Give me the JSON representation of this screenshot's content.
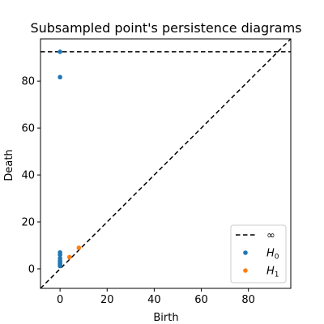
{
  "chart_data": {
    "type": "scatter",
    "title": "Subsampled point's persistence diagrams",
    "xlabel": "Birth",
    "ylabel": "Death",
    "xlim": [
      -8.3,
      98.0
    ],
    "ylim": [
      -8.3,
      98.0
    ],
    "x_ticks": [
      0,
      20,
      40,
      60,
      80
    ],
    "y_ticks": [
      0,
      20,
      40,
      60,
      80
    ],
    "infinity_value": 92.5,
    "diagonal": true,
    "grid": false,
    "legend_position": "lower-right",
    "legend": [
      {
        "label": "∞",
        "marker": "dashed-line",
        "color": "#000000"
      },
      {
        "label": "H",
        "subscript": "0",
        "marker": "dot",
        "color": "#1f77b4"
      },
      {
        "label": "H",
        "subscript": "1",
        "marker": "dot",
        "color": "#ff7f0e"
      }
    ],
    "series": [
      {
        "name": "H0",
        "color": "#1f77b4",
        "points": [
          [
            0,
            92.5
          ],
          [
            0,
            81.7
          ],
          [
            0,
            7.0
          ],
          [
            0,
            6.0
          ],
          [
            0,
            4.5
          ],
          [
            0,
            3.5
          ],
          [
            0,
            2.8
          ],
          [
            0,
            2.2
          ],
          [
            0,
            1.7
          ],
          [
            0,
            1.2
          ]
        ]
      },
      {
        "name": "H1",
        "color": "#ff7f0e",
        "points": [
          [
            4.0,
            5.0
          ],
          [
            8.0,
            9.0
          ]
        ]
      }
    ]
  }
}
